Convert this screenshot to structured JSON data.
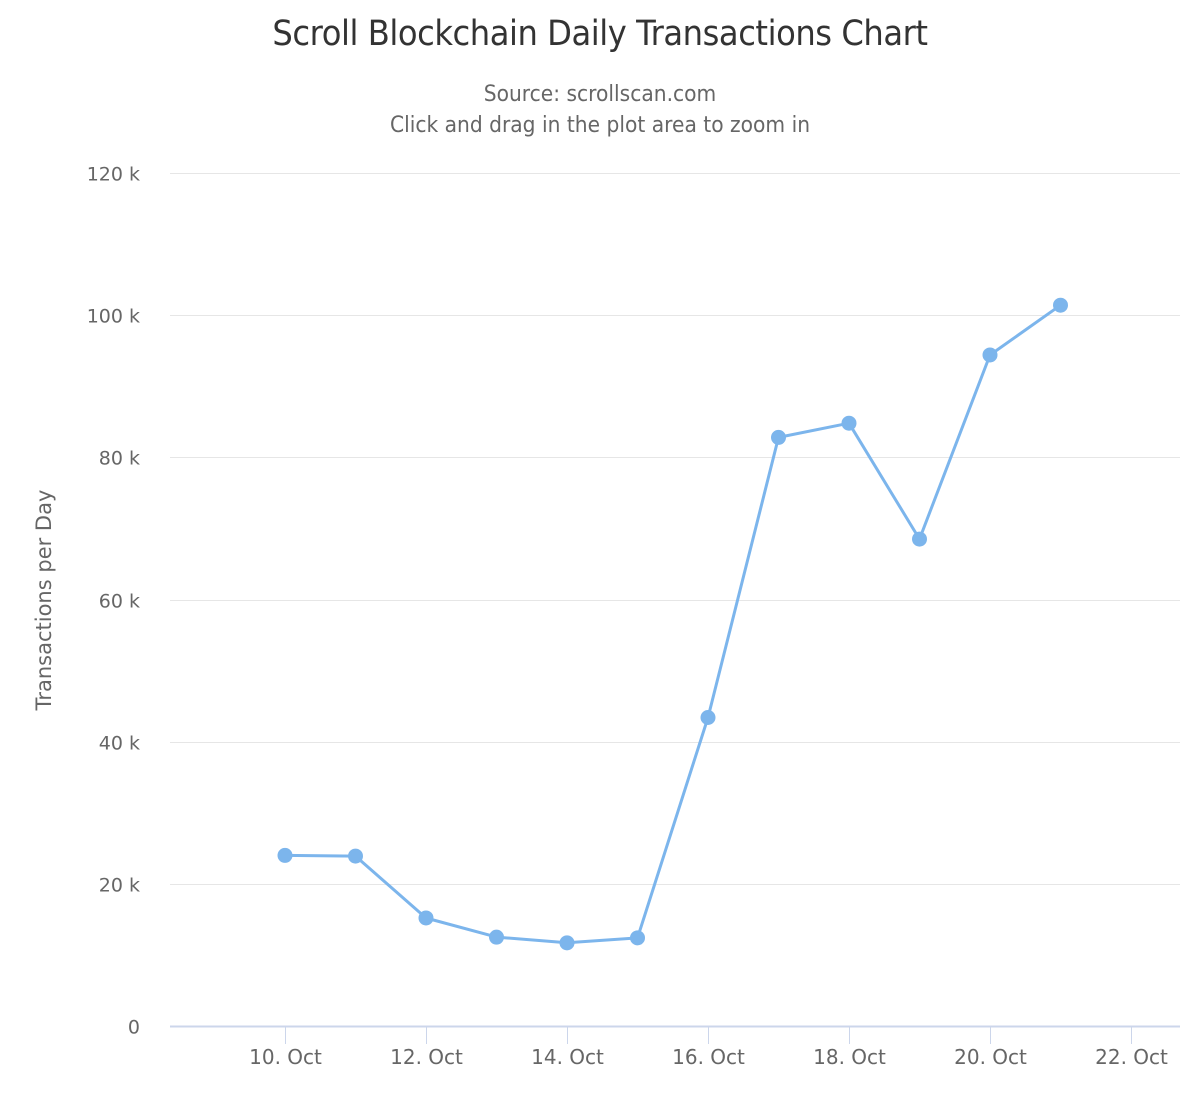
{
  "title": "Scroll Blockchain Daily Transactions Chart",
  "subtitle_line1": "Source: scrollscan.com",
  "subtitle_line2": "Click and drag in the plot area to zoom in",
  "colors": {
    "series": "#7cb5ec",
    "grid": "#e6e6e6",
    "axis": "#ccd6eb",
    "text": "#666666",
    "title": "#333333"
  },
  "chart_data": {
    "type": "line",
    "title": "Scroll Blockchain Daily Transactions Chart",
    "subtitle": "Source: scrollscan.com — Click and drag in the plot area to zoom in",
    "xlabel": "",
    "ylabel": "Transactions per Day",
    "ylim": [
      0,
      120000
    ],
    "y_ticks": [
      "0",
      "20 k",
      "40 k",
      "60 k",
      "80 k",
      "100 k",
      "120 k"
    ],
    "x_ticks": [
      "10. Oct",
      "12. Oct",
      "14. Oct",
      "16. Oct",
      "18. Oct",
      "20. Oct",
      "22. Oct"
    ],
    "grid": true,
    "legend": "none",
    "categories": [
      "10. Oct",
      "11. Oct",
      "12. Oct",
      "13. Oct",
      "14. Oct",
      "15. Oct",
      "16. Oct",
      "17. Oct",
      "18. Oct",
      "19. Oct",
      "20. Oct",
      "21. Oct"
    ],
    "series": [
      {
        "name": "Transactions per Day",
        "values": [
          24000,
          23900,
          15200,
          12500,
          11700,
          12400,
          43400,
          82800,
          84800,
          68500,
          94400,
          101400
        ]
      }
    ]
  }
}
